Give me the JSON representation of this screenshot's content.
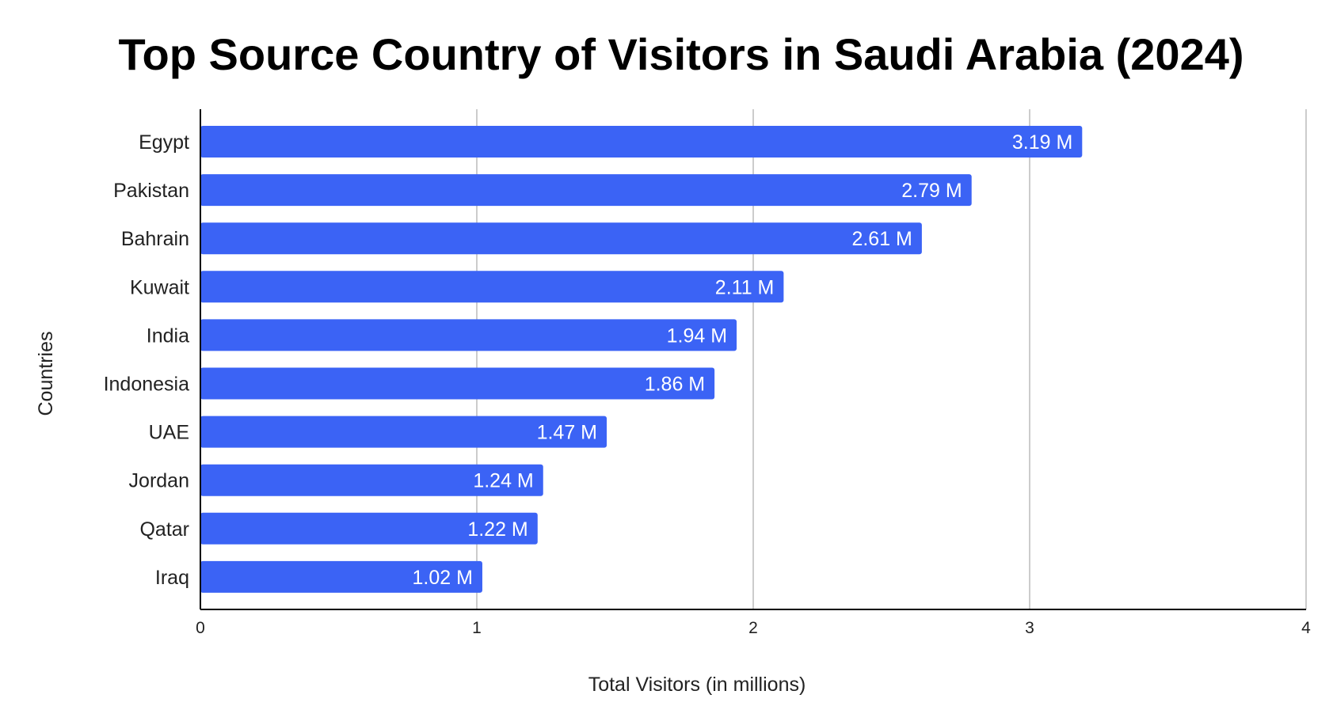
{
  "chart_data": {
    "type": "bar",
    "orientation": "horizontal",
    "title": "Top Source Country of Visitors in Saudi Arabia (2024)",
    "xlabel": "Total Visitors (in millions)",
    "ylabel": "Countries",
    "categories": [
      "Egypt",
      "Pakistan",
      "Bahrain",
      "Kuwait",
      "India",
      "Indonesia",
      "UAE",
      "Jordan",
      "Qatar",
      "Iraq"
    ],
    "values": [
      3.19,
      2.79,
      2.61,
      2.11,
      1.94,
      1.86,
      1.47,
      1.24,
      1.22,
      1.02
    ],
    "data_labels": [
      "3.19 M",
      "2.79 M",
      "2.61 M",
      "2.11 M",
      "1.94 M",
      "1.86 M",
      "1.47 M",
      "1.24 M",
      "1.22 M",
      "1.02 M"
    ],
    "xlim": [
      0,
      4
    ],
    "xticks": [
      "0",
      "1",
      "2",
      "3",
      "4"
    ],
    "grid": true,
    "legend": "none",
    "bar_color": "#3b63f5"
  }
}
